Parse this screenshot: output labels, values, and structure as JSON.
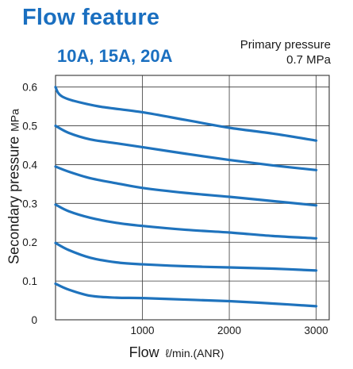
{
  "header": {
    "title": "Flow feature",
    "subtitle": "10A, 15A, 20A",
    "pressure_label": "Primary pressure",
    "pressure_value": "0.7 MPa"
  },
  "chart_data": {
    "type": "line",
    "xlabel": "Flow",
    "xunit": "ℓ/min.(ANR)",
    "ylabel": "Secondary pressure",
    "yunit": "MPa",
    "xlim": [
      0,
      3150
    ],
    "ylim": [
      0,
      0.63
    ],
    "xticks": [
      0,
      1000,
      2000,
      3000
    ],
    "xtick_labels": [
      "",
      "1000",
      "2000",
      "3000"
    ],
    "yticks": [
      0,
      0.1,
      0.2,
      0.3,
      0.4,
      0.5,
      0.6
    ],
    "ytick_labels": [
      "0",
      "0.1",
      "0.2",
      "0.3",
      "0.4",
      "0.5",
      "0.6"
    ],
    "grid": true,
    "line_color": "#1f73bd",
    "series": [
      {
        "x": [
          0,
          30,
          80,
          200,
          500,
          1000,
          1500,
          2000,
          2500,
          3000
        ],
        "y": [
          0.6,
          0.585,
          0.575,
          0.565,
          0.55,
          0.535,
          0.515,
          0.495,
          0.48,
          0.462
        ]
      },
      {
        "x": [
          0,
          150,
          400,
          700,
          1000,
          1500,
          2000,
          2500,
          3000
        ],
        "y": [
          0.5,
          0.482,
          0.465,
          0.455,
          0.445,
          0.428,
          0.412,
          0.398,
          0.386
        ]
      },
      {
        "x": [
          0,
          150,
          400,
          700,
          1000,
          1500,
          2000,
          2500,
          3000
        ],
        "y": [
          0.395,
          0.382,
          0.365,
          0.352,
          0.34,
          0.327,
          0.317,
          0.306,
          0.295
        ]
      },
      {
        "x": [
          0,
          150,
          400,
          700,
          1000,
          1500,
          2000,
          2500,
          3000
        ],
        "y": [
          0.297,
          0.28,
          0.263,
          0.25,
          0.242,
          0.232,
          0.225,
          0.216,
          0.21
        ]
      },
      {
        "x": [
          0,
          150,
          400,
          700,
          1000,
          1500,
          2000,
          2500,
          3000
        ],
        "y": [
          0.198,
          0.18,
          0.16,
          0.148,
          0.143,
          0.138,
          0.135,
          0.132,
          0.127
        ]
      },
      {
        "x": [
          0,
          150,
          400,
          700,
          1000,
          1500,
          2000,
          2500,
          3000
        ],
        "y": [
          0.093,
          0.078,
          0.062,
          0.057,
          0.056,
          0.052,
          0.048,
          0.042,
          0.035
        ]
      }
    ]
  }
}
